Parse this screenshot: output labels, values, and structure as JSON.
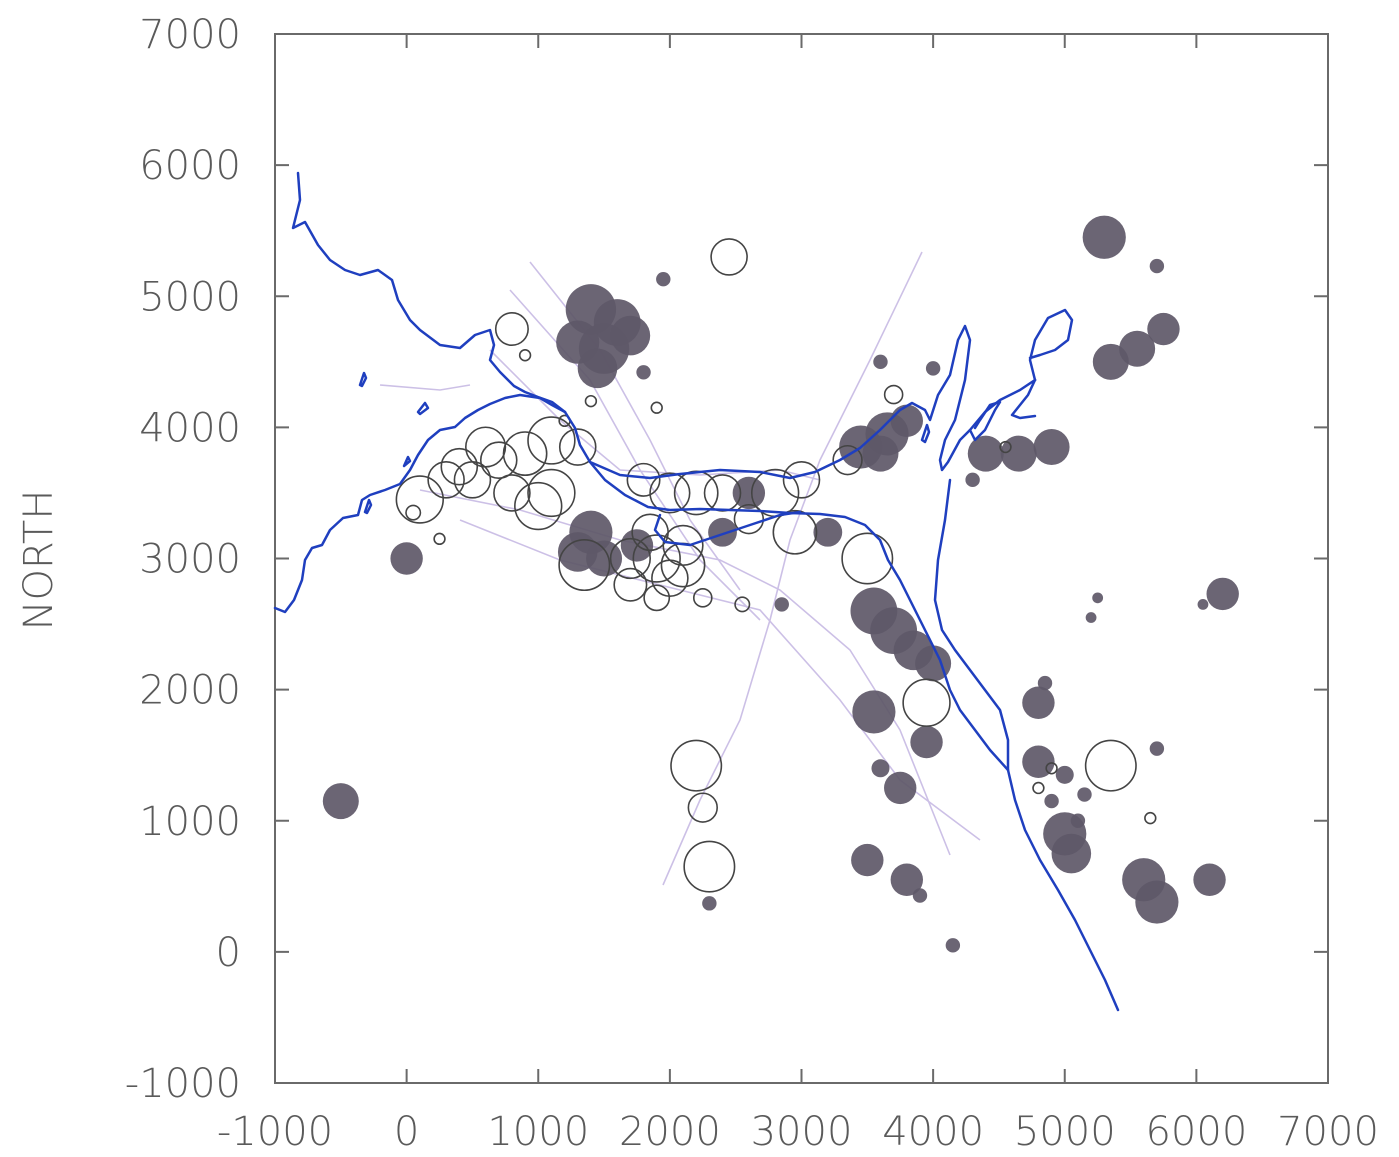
{
  "chart_data": {
    "type": "scatter",
    "title": "",
    "xlabel": "",
    "ylabel": "NORTH",
    "xlim": [
      -1000,
      7000
    ],
    "ylim": [
      -1000,
      7000
    ],
    "x_ticks": [
      -1000,
      0,
      1000,
      2000,
      3000,
      4000,
      5000,
      6000,
      7000
    ],
    "y_ticks": [
      -1000,
      0,
      1000,
      2000,
      3000,
      4000,
      5000,
      6000,
      7000
    ],
    "x_tick_labels": [
      "-1000",
      "0",
      "1000",
      "2000",
      "3000",
      "4000",
      "5000",
      "6000",
      "7000"
    ],
    "y_tick_labels": [
      "-1000",
      "0",
      "1000",
      "2000",
      "3000",
      "4000",
      "5000",
      "6000",
      "7000"
    ],
    "grid": false,
    "colors": {
      "filled_markers": "#5e5868",
      "open_markers": "#444444",
      "river_lines": "#1f3fbf",
      "faint_lines": "#b9a9d9",
      "axis": "#6a6a6a",
      "text": "#5a5a5a"
    },
    "series": [
      {
        "marker": "filled-circle",
        "points": [
          [
            1400,
            4900,
            1.4
          ],
          [
            1600,
            4800,
            1.3
          ],
          [
            1300,
            4650,
            1.2
          ],
          [
            1500,
            4600,
            1.4
          ],
          [
            1700,
            4700,
            1.1
          ],
          [
            1450,
            4450,
            1.1
          ],
          [
            1950,
            5130,
            0.4
          ],
          [
            1800,
            4420,
            0.4
          ],
          [
            -500,
            1150,
            1.0
          ],
          [
            0,
            3000,
            0.9
          ],
          [
            1400,
            3200,
            1.2
          ],
          [
            1300,
            3050,
            1.1
          ],
          [
            1500,
            3000,
            1.0
          ],
          [
            1750,
            3100,
            0.9
          ],
          [
            2600,
            3500,
            0.9
          ],
          [
            2400,
            3200,
            0.8
          ],
          [
            3200,
            3200,
            0.8
          ],
          [
            3450,
            3850,
            1.2
          ],
          [
            3650,
            3950,
            1.2
          ],
          [
            3800,
            4050,
            0.9
          ],
          [
            3600,
            3800,
            1.0
          ],
          [
            4000,
            4450,
            0.4
          ],
          [
            3600,
            4500,
            0.4
          ],
          [
            3550,
            2600,
            1.3
          ],
          [
            3700,
            2450,
            1.3
          ],
          [
            3850,
            2300,
            1.1
          ],
          [
            4000,
            2200,
            1.0
          ],
          [
            3550,
            1830,
            1.2
          ],
          [
            3950,
            1600,
            0.9
          ],
          [
            3600,
            1400,
            0.5
          ],
          [
            3750,
            1250,
            0.9
          ],
          [
            3500,
            700,
            0.9
          ],
          [
            3800,
            550,
            0.9
          ],
          [
            3900,
            430,
            0.4
          ],
          [
            4150,
            50,
            0.4
          ],
          [
            4400,
            3800,
            1.0
          ],
          [
            4650,
            3800,
            1.0
          ],
          [
            4900,
            3850,
            1.0
          ],
          [
            4300,
            3600,
            0.4
          ],
          [
            5300,
            5450,
            1.2
          ],
          [
            5700,
            5230,
            0.4
          ],
          [
            5350,
            4500,
            1.0
          ],
          [
            5550,
            4600,
            1.0
          ],
          [
            5750,
            4750,
            0.9
          ],
          [
            5250,
            2700,
            0.3
          ],
          [
            5200,
            2550,
            0.3
          ],
          [
            6050,
            2650,
            0.3
          ],
          [
            6200,
            2730,
            0.9
          ],
          [
            4800,
            1900,
            0.9
          ],
          [
            4850,
            2050,
            0.4
          ],
          [
            4800,
            1450,
            0.9
          ],
          [
            5000,
            1350,
            0.5
          ],
          [
            4900,
            1150,
            0.4
          ],
          [
            5150,
            1200,
            0.4
          ],
          [
            5100,
            1000,
            0.4
          ],
          [
            5000,
            900,
            1.2
          ],
          [
            5050,
            750,
            1.1
          ],
          [
            5600,
            550,
            1.2
          ],
          [
            5700,
            380,
            1.2
          ],
          [
            6100,
            550,
            0.9
          ],
          [
            5700,
            1550,
            0.4
          ],
          [
            2850,
            2650,
            0.4
          ],
          [
            2300,
            370,
            0.4
          ]
        ]
      },
      {
        "marker": "open-circle",
        "points": [
          [
            2450,
            5300,
            1.0
          ],
          [
            800,
            4750,
            0.9
          ],
          [
            900,
            4550,
            0.3
          ],
          [
            1200,
            4050,
            0.3
          ],
          [
            1400,
            4200,
            0.3
          ],
          [
            1900,
            4150,
            0.3
          ],
          [
            3700,
            4250,
            0.5
          ],
          [
            400,
            3700,
            1.0
          ],
          [
            600,
            3850,
            1.1
          ],
          [
            700,
            3750,
            1.0
          ],
          [
            900,
            3800,
            1.2
          ],
          [
            1100,
            3900,
            1.3
          ],
          [
            1300,
            3850,
            1.0
          ],
          [
            500,
            3600,
            1.0
          ],
          [
            800,
            3500,
            1.0
          ],
          [
            1000,
            3400,
            1.3
          ],
          [
            1100,
            3500,
            1.3
          ],
          [
            100,
            3450,
            1.3
          ],
          [
            300,
            3600,
            1.0
          ],
          [
            50,
            3350,
            0.4
          ],
          [
            250,
            3150,
            0.3
          ],
          [
            1800,
            3600,
            0.9
          ],
          [
            2000,
            3500,
            1.1
          ],
          [
            2200,
            3500,
            1.2
          ],
          [
            2400,
            3500,
            1.0
          ],
          [
            2800,
            3500,
            1.3
          ],
          [
            3000,
            3600,
            1.0
          ],
          [
            2600,
            3300,
            0.8
          ],
          [
            2950,
            3200,
            1.2
          ],
          [
            1700,
            3000,
            1.1
          ],
          [
            1900,
            3000,
            1.3
          ],
          [
            2100,
            2950,
            1.2
          ],
          [
            2000,
            2850,
            1.0
          ],
          [
            1700,
            2800,
            0.9
          ],
          [
            1900,
            2700,
            0.7
          ],
          [
            2250,
            2700,
            0.5
          ],
          [
            2550,
            2650,
            0.4
          ],
          [
            1350,
            2950,
            1.4
          ],
          [
            2100,
            3100,
            1.1
          ],
          [
            1850,
            3200,
            1.0
          ],
          [
            3350,
            3750,
            0.8
          ],
          [
            3500,
            3000,
            1.4
          ],
          [
            3950,
            1900,
            1.3
          ],
          [
            2200,
            1420,
            1.4
          ],
          [
            2250,
            1100,
            0.8
          ],
          [
            2300,
            650,
            1.4
          ],
          [
            5350,
            1420,
            1.4
          ],
          [
            5650,
            1020,
            0.3
          ],
          [
            4800,
            1250,
            0.3
          ],
          [
            4900,
            1400,
            0.3
          ],
          [
            4550,
            3850,
            0.3
          ]
        ]
      }
    ]
  }
}
